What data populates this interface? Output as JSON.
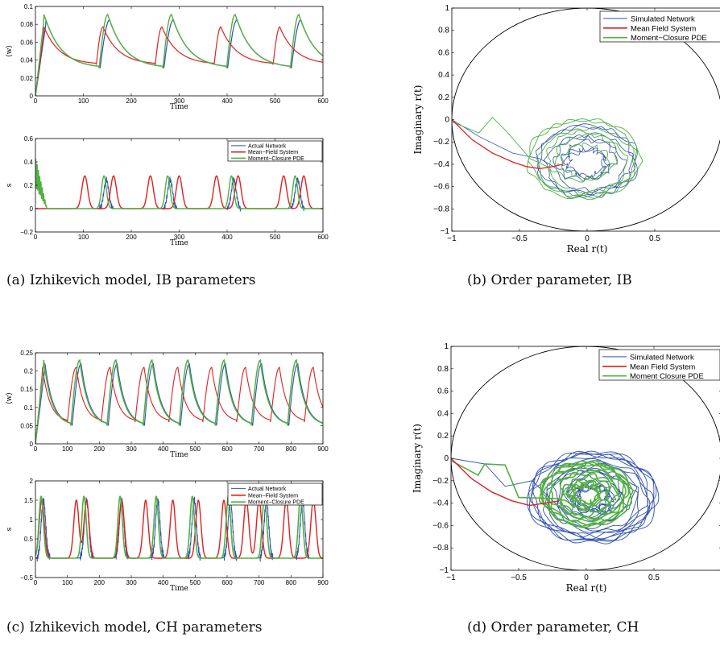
{
  "captions": {
    "a": "(a) Izhikevich model, IB parameters",
    "b": "(b) Order parameter, IB",
    "c": "(c) Izhikevich model, CH parameters",
    "d": "(d) Order parameter, CH"
  },
  "colors": {
    "network": "#3050b0",
    "meanfield": "#e02020",
    "moment": "#50b040",
    "circle": "#000000"
  },
  "chart_data": [
    {
      "id": "a1",
      "type": "line",
      "xlabel": "Time",
      "ylabel": "⟨w⟩",
      "xlim": [
        0,
        600
      ],
      "ylim": [
        0,
        0.1
      ],
      "xticks": [
        0,
        100,
        200,
        300,
        400,
        500,
        600
      ],
      "yticks": [
        0,
        0.02,
        0.04,
        0.06,
        0.08,
        0.1
      ],
      "ytick_labels": [
        "0",
        "0.02",
        "0.04",
        "0.06",
        "0.08",
        "0.1"
      ],
      "series": [
        {
          "color": "#3050b0",
          "period": 133,
          "phase": 22,
          "base": 0.031,
          "peak": 0.085,
          "rise": 20,
          "x": [
            0,
            22,
            155,
            288,
            421,
            554
          ]
        },
        {
          "color": "#e02020",
          "period": 123,
          "phase": 18,
          "base": 0.035,
          "peak": 0.077,
          "rise": 14
        },
        {
          "color": "#50b040",
          "period": 133,
          "phase": 18,
          "base": 0.031,
          "peak": 0.091,
          "rise": 18
        }
      ]
    },
    {
      "id": "a2",
      "type": "line",
      "xlabel": "Time",
      "ylabel": "s",
      "xlim": [
        0,
        600
      ],
      "ylim": [
        -0.2,
        0.6
      ],
      "xticks": [
        0,
        100,
        200,
        300,
        400,
        500,
        600
      ],
      "yticks": [
        -0.2,
        0,
        0.2,
        0.4,
        0.6
      ],
      "ytick_labels": [
        "−0.2",
        "0",
        "0.2",
        "0.4",
        "0.6"
      ],
      "legend": [
        "Actual Network",
        "Mean−Field System",
        "Moment−Closure PDE"
      ],
      "series": [
        {
          "color": "#3050b0",
          "peaks": [
            148,
            281,
            414,
            547
          ],
          "height": 0.25
        },
        {
          "color": "#e02020",
          "peaks": [
            103,
            163,
            240,
            300,
            380,
            420,
            520,
            560
          ],
          "height": 0.28
        },
        {
          "color": "#50b040",
          "peaks": [
            143,
            276,
            409,
            542
          ],
          "height": 0.28
        }
      ]
    },
    {
      "id": "b",
      "type": "line",
      "xlabel": "Real r(t)",
      "ylabel": "Imaginary r(t)",
      "xlim": [
        -1,
        1
      ],
      "ylim": [
        -1,
        1
      ],
      "xticks": [
        -1,
        -0.5,
        0,
        0.5
      ],
      "xtick_labels": [
        "−1",
        "−0.5",
        "0",
        "0.5"
      ],
      "yticks": [
        -1,
        -0.8,
        -0.6,
        -0.4,
        -0.2,
        0,
        0.2,
        0.4,
        0.6,
        0.8,
        1
      ],
      "ytick_labels": [
        "−1",
        "−0.8",
        "−0.6",
        "−0.4",
        "−0.2",
        "0",
        "0.2",
        "0.4",
        "0.6",
        "0.8",
        "1"
      ],
      "legend": [
        "Simulated Network",
        "Mean Field System",
        "Moment−Closure PDE"
      ]
    },
    {
      "id": "c1",
      "type": "line",
      "xlabel": "Time",
      "ylabel": "⟨w⟩",
      "xlim": [
        0,
        900
      ],
      "ylim": [
        0,
        0.25
      ],
      "xticks": [
        0,
        100,
        200,
        300,
        400,
        500,
        600,
        700,
        800,
        900
      ],
      "yticks": [
        0,
        0.05,
        0.1,
        0.15,
        0.2,
        0.25
      ],
      "ytick_labels": [
        "0",
        "0.05",
        "0.1",
        "0.15",
        "0.2",
        "0.25"
      ],
      "series": [
        {
          "color": "#3050b0",
          "period": 113,
          "phase": 30,
          "base": 0.05,
          "peak": 0.22
        },
        {
          "color": "#e02020",
          "period": 106,
          "phase": 22,
          "base": 0.06,
          "peak": 0.21
        },
        {
          "color": "#50b040",
          "period": 113,
          "phase": 26,
          "base": 0.05,
          "peak": 0.23
        }
      ]
    },
    {
      "id": "c2",
      "type": "line",
      "xlabel": "Time",
      "ylabel": "s",
      "xlim": [
        0,
        900
      ],
      "ylim": [
        -0.5,
        2
      ],
      "xticks": [
        0,
        100,
        200,
        300,
        400,
        500,
        600,
        700,
        800,
        900
      ],
      "yticks": [
        -0.5,
        0,
        0.5,
        1,
        1.5,
        2
      ],
      "ytick_labels": [
        "−0.5",
        "0",
        "0.5",
        "1",
        "1.5",
        "2"
      ],
      "legend": [
        "Actual Network",
        "Mean−Field System",
        "Moment−Closure PDE"
      ]
    },
    {
      "id": "d",
      "type": "line",
      "xlabel": "Real r(t)",
      "ylabel": "Imaginary r(t)",
      "xlim": [
        -1,
        1
      ],
      "ylim": [
        -1,
        1
      ],
      "xticks": [
        -1,
        -0.5,
        0,
        0.5
      ],
      "xtick_labels": [
        "−1",
        "−0.5",
        "0",
        "0.5"
      ],
      "yticks": [
        -1,
        -0.8,
        -0.6,
        -0.4,
        -0.2,
        0,
        0.2,
        0.4,
        0.6,
        0.8,
        1
      ],
      "ytick_labels": [
        "−1",
        "−0.8",
        "−0.6",
        "−0.4",
        "−0.2",
        "0",
        "0.2",
        "0.4",
        "0.6",
        "0.8",
        "1"
      ],
      "legend": [
        "Simulated Network",
        "Mean Field System",
        "Moment Closure PDE"
      ]
    }
  ]
}
